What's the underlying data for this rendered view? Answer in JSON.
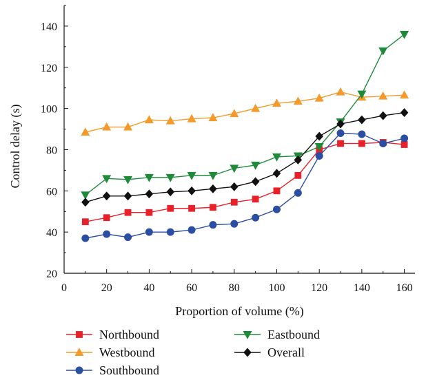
{
  "chart_data": {
    "type": "line",
    "title": "",
    "xlabel": "Proportion of volume (%)",
    "ylabel": "Control delay (s)",
    "xlim": [
      0,
      165
    ],
    "ylim": [
      20,
      150
    ],
    "xticks": [
      0,
      20,
      40,
      60,
      80,
      100,
      120,
      140,
      160
    ],
    "yticks": [
      20,
      40,
      60,
      80,
      100,
      120,
      140
    ],
    "xtick_labels": [
      "0",
      "20",
      "40",
      "60",
      "80",
      "100",
      "120",
      "140",
      "160"
    ],
    "ytick_labels": [
      "20",
      "40",
      "60",
      "80",
      "100",
      "120",
      "140"
    ],
    "grid": false,
    "legend_position": "bottom",
    "x": [
      10,
      20,
      30,
      40,
      50,
      60,
      70,
      80,
      90,
      100,
      110,
      120,
      130,
      140,
      150,
      160
    ],
    "series": [
      {
        "name": "Northbound",
        "color": "#e8202a",
        "marker": "square",
        "values": [
          45,
          47,
          49.5,
          49.5,
          51.5,
          51.5,
          52,
          54.5,
          56,
          60,
          67.5,
          80,
          83,
          83,
          83.5,
          82.5
        ]
      },
      {
        "name": "Westbound",
        "color": "#f39a2a",
        "marker": "triangle-up",
        "values": [
          88.5,
          91,
          91,
          94.5,
          94,
          95,
          95.5,
          97.5,
          100,
          102.5,
          103.5,
          105,
          108,
          105.5,
          106,
          106.5
        ]
      },
      {
        "name": "Southbound",
        "color": "#2b4ea2",
        "marker": "circle",
        "values": [
          37,
          39,
          37.5,
          40,
          40,
          41,
          43.5,
          44,
          47,
          51,
          59,
          77,
          88,
          87.5,
          83,
          85.5
        ]
      },
      {
        "name": "Eastbound",
        "color": "#1e8a3a",
        "marker": "triangle-down",
        "values": [
          58,
          66,
          65.5,
          66.5,
          66.5,
          67.5,
          67.5,
          71,
          72.5,
          76.5,
          77,
          81.5,
          93.5,
          107,
          128,
          136
        ]
      },
      {
        "name": "Overall",
        "color": "#111111",
        "marker": "diamond",
        "values": [
          54.5,
          57.5,
          57.5,
          58.5,
          59.5,
          60,
          61,
          62,
          64.5,
          68.5,
          75,
          86.5,
          92.5,
          94.5,
          96.5,
          98
        ]
      }
    ]
  }
}
